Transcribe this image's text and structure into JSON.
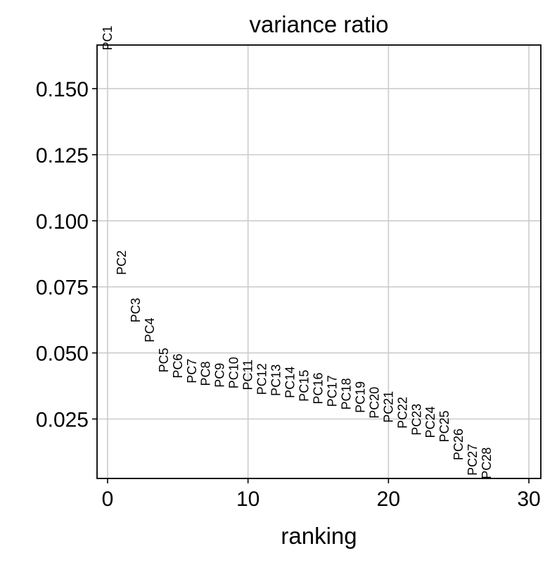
{
  "chart_data": {
    "type": "scatter",
    "title": "variance ratio",
    "xlabel": "ranking",
    "ylabel": "",
    "xlim": [
      -0.75,
      30.85
    ],
    "ylim": [
      0.0025,
      0.1665
    ],
    "xticks": [
      0,
      10,
      20,
      30
    ],
    "xtick_labels": [
      "0",
      "10",
      "20",
      "30"
    ],
    "yticks": [
      0.025,
      0.05,
      0.075,
      0.1,
      0.125,
      0.15
    ],
    "ytick_labels": [
      "0.025",
      "0.050",
      "0.075",
      "0.100",
      "0.125",
      "0.150"
    ],
    "grid": true,
    "marker": "text-label",
    "points": [
      {
        "label": "PC1",
        "x": 0,
        "y": 0.1645
      },
      {
        "label": "PC2",
        "x": 1,
        "y": 0.0795
      },
      {
        "label": "PC3",
        "x": 2,
        "y": 0.0615
      },
      {
        "label": "PC4",
        "x": 3,
        "y": 0.054
      },
      {
        "label": "PC5",
        "x": 4,
        "y": 0.0426
      },
      {
        "label": "PC6",
        "x": 5,
        "y": 0.0404
      },
      {
        "label": "PC7",
        "x": 6,
        "y": 0.0385
      },
      {
        "label": "PC8",
        "x": 7,
        "y": 0.0375
      },
      {
        "label": "PC9",
        "x": 8,
        "y": 0.0369
      },
      {
        "label": "PC10",
        "x": 9,
        "y": 0.0365
      },
      {
        "label": "PC11",
        "x": 10,
        "y": 0.0359
      },
      {
        "label": "PC12",
        "x": 11,
        "y": 0.0341
      },
      {
        "label": "PC13",
        "x": 12,
        "y": 0.0337
      },
      {
        "label": "PC14",
        "x": 13,
        "y": 0.0329
      },
      {
        "label": "PC15",
        "x": 14,
        "y": 0.0316
      },
      {
        "label": "PC16",
        "x": 15,
        "y": 0.0306
      },
      {
        "label": "PC17",
        "x": 16,
        "y": 0.0296
      },
      {
        "label": "PC18",
        "x": 17,
        "y": 0.0285
      },
      {
        "label": "PC19",
        "x": 18,
        "y": 0.0273
      },
      {
        "label": "PC20",
        "x": 19,
        "y": 0.0252
      },
      {
        "label": "PC21",
        "x": 20,
        "y": 0.0236
      },
      {
        "label": "PC22",
        "x": 21,
        "y": 0.0214
      },
      {
        "label": "PC23",
        "x": 22,
        "y": 0.0188
      },
      {
        "label": "PC24",
        "x": 23,
        "y": 0.0178
      },
      {
        "label": "PC25",
        "x": 24,
        "y": 0.0162
      },
      {
        "label": "PC26",
        "x": 25,
        "y": 0.0094
      },
      {
        "label": "PC27",
        "x": 26,
        "y": 0.0036
      },
      {
        "label": "PC28",
        "x": 27,
        "y": 0.0023
      }
    ]
  }
}
